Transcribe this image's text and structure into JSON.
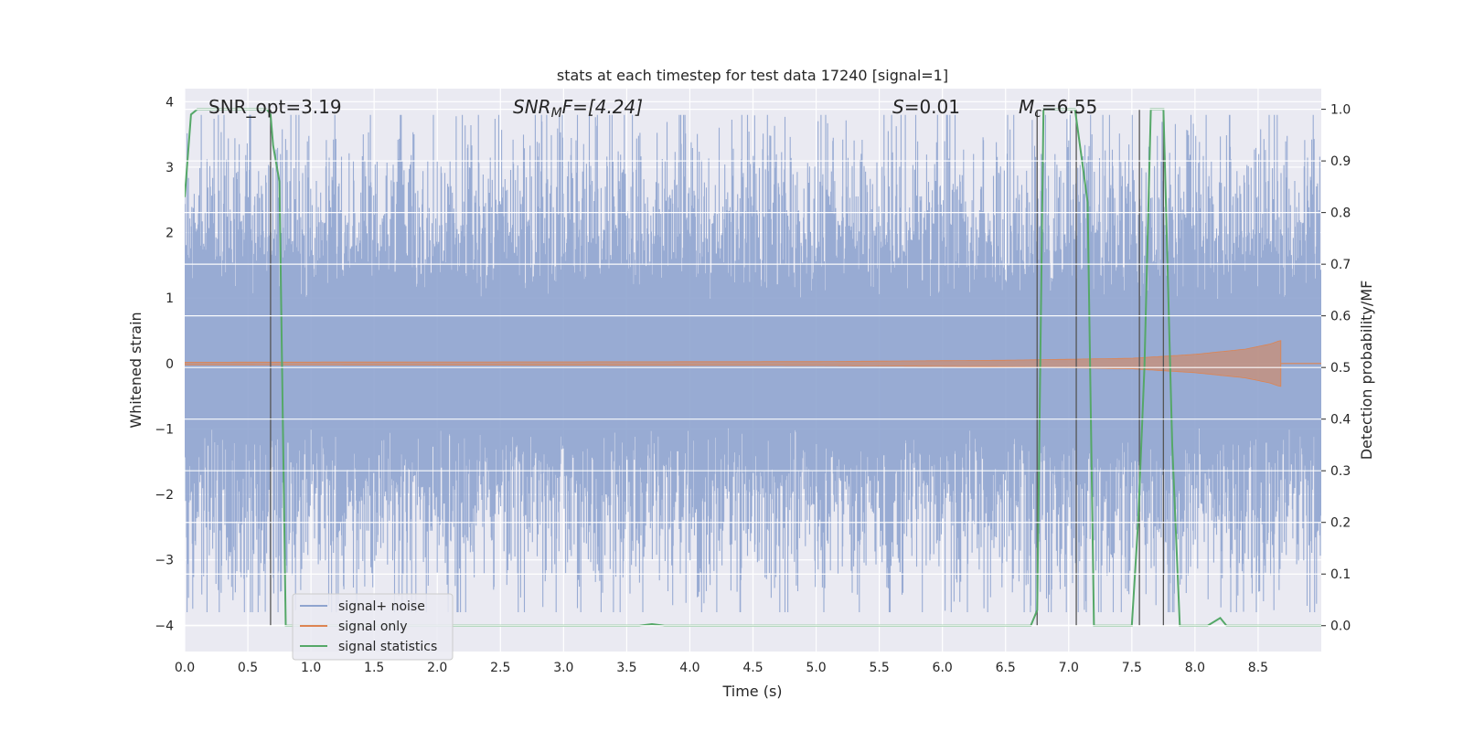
{
  "chart_data": {
    "type": "line",
    "title": "stats at each timestep for test data 17240 [signal=1]",
    "xlabel": "Time (s)",
    "ylabel": "Whitened strain",
    "y2label": "Detection probability/MF",
    "xlim": [
      0,
      9.0
    ],
    "ylim": [
      -4.4,
      4.2
    ],
    "y2lim": [
      -0.05,
      1.04
    ],
    "xticks": [
      0.0,
      0.5,
      1.0,
      1.5,
      2.0,
      2.5,
      3.0,
      3.5,
      4.0,
      4.5,
      5.0,
      5.5,
      6.0,
      6.5,
      7.0,
      7.5,
      8.0,
      8.5
    ],
    "xtick_labels": [
      "0.0",
      "0.5",
      "1.0",
      "1.5",
      "2.0",
      "2.5",
      "3.0",
      "3.5",
      "4.0",
      "4.5",
      "5.0",
      "5.5",
      "6.0",
      "6.5",
      "7.0",
      "7.5",
      "8.0",
      "8.5"
    ],
    "yticks": [
      -4,
      -3,
      -2,
      -1,
      0,
      1,
      2,
      3,
      4
    ],
    "ytick_labels": [
      "−4",
      "−3",
      "−2",
      "−1",
      "0",
      "1",
      "2",
      "3",
      "4"
    ],
    "y2ticks": [
      0.0,
      0.1,
      0.2,
      0.3,
      0.4,
      0.5,
      0.6,
      0.7,
      0.8,
      0.9,
      1.0
    ],
    "y2tick_labels": [
      "0.0",
      "0.1",
      "0.2",
      "0.3",
      "0.4",
      "0.5",
      "0.6",
      "0.7",
      "0.8",
      "0.9",
      "1.0"
    ],
    "grid": true,
    "legend_position": "bottom-left",
    "annotations": {
      "snr_opt": "SNR_opt=3.19",
      "snr_mf_sym": "SNR",
      "snr_mf_sub": "M",
      "snr_mf_rest": "F=[4.24]",
      "s_sym": "S",
      "s_rest": "=0.01",
      "mc_sym": "M",
      "mc_sub": "c",
      "mc_rest": "=6.55"
    },
    "series": [
      {
        "name": "signal+ noise",
        "color": "#8fa4cf",
        "style": "dense noise band, typical amplitude about 1.7, spikes up to about 3.7",
        "duration": 9.0,
        "typical_amplitude": 1.7,
        "max_amplitude": 3.7
      },
      {
        "name": "signal only",
        "color": "#dd8452",
        "style": "chirp: near zero, amplitude growing toward the end",
        "envelope": {
          "t": [
            0,
            5.0,
            6.5,
            7.5,
            8.0,
            8.4,
            8.6,
            8.67
          ],
          "amp": [
            0.02,
            0.03,
            0.05,
            0.08,
            0.14,
            0.22,
            0.3,
            0.35
          ]
        },
        "end_time": 8.68
      },
      {
        "name": "signal statistics",
        "color": "#55a868",
        "axis": "right",
        "t": [
          0.0,
          0.05,
          0.1,
          0.65,
          0.68,
          0.7,
          0.75,
          0.8,
          3.6,
          3.7,
          3.8,
          6.7,
          6.75,
          6.8,
          7.05,
          7.15,
          7.2,
          7.5,
          7.55,
          7.6,
          7.65,
          7.7,
          7.75,
          7.82,
          7.88,
          8.1,
          8.2,
          8.25,
          9.0
        ],
        "values": [
          0.83,
          0.99,
          1.0,
          1.0,
          0.99,
          0.93,
          0.86,
          0.0,
          0.0,
          0.003,
          0.0,
          0.0,
          0.03,
          1.0,
          1.0,
          0.82,
          0.0,
          0.0,
          0.2,
          0.5,
          1.0,
          1.0,
          1.0,
          0.35,
          0.0,
          0.0,
          0.015,
          0.0,
          0.0
        ]
      }
    ],
    "vertical_markers": [
      {
        "x": 0.68,
        "y_bottom": 0.0,
        "y_top": 1.0
      },
      {
        "x": 6.75,
        "y_bottom": 0.0,
        "y_top": 1.0
      },
      {
        "x": 7.06,
        "y_bottom": 0.0,
        "y_top": 1.0
      },
      {
        "x": 7.56,
        "y_bottom": 0.0,
        "y_top": 1.0
      },
      {
        "x": 7.75,
        "y_bottom": 0.0,
        "y_top": 1.0
      }
    ],
    "marker_color": "#555555",
    "background_color": "#eaeaf2",
    "grid_color": "#ffffff"
  }
}
